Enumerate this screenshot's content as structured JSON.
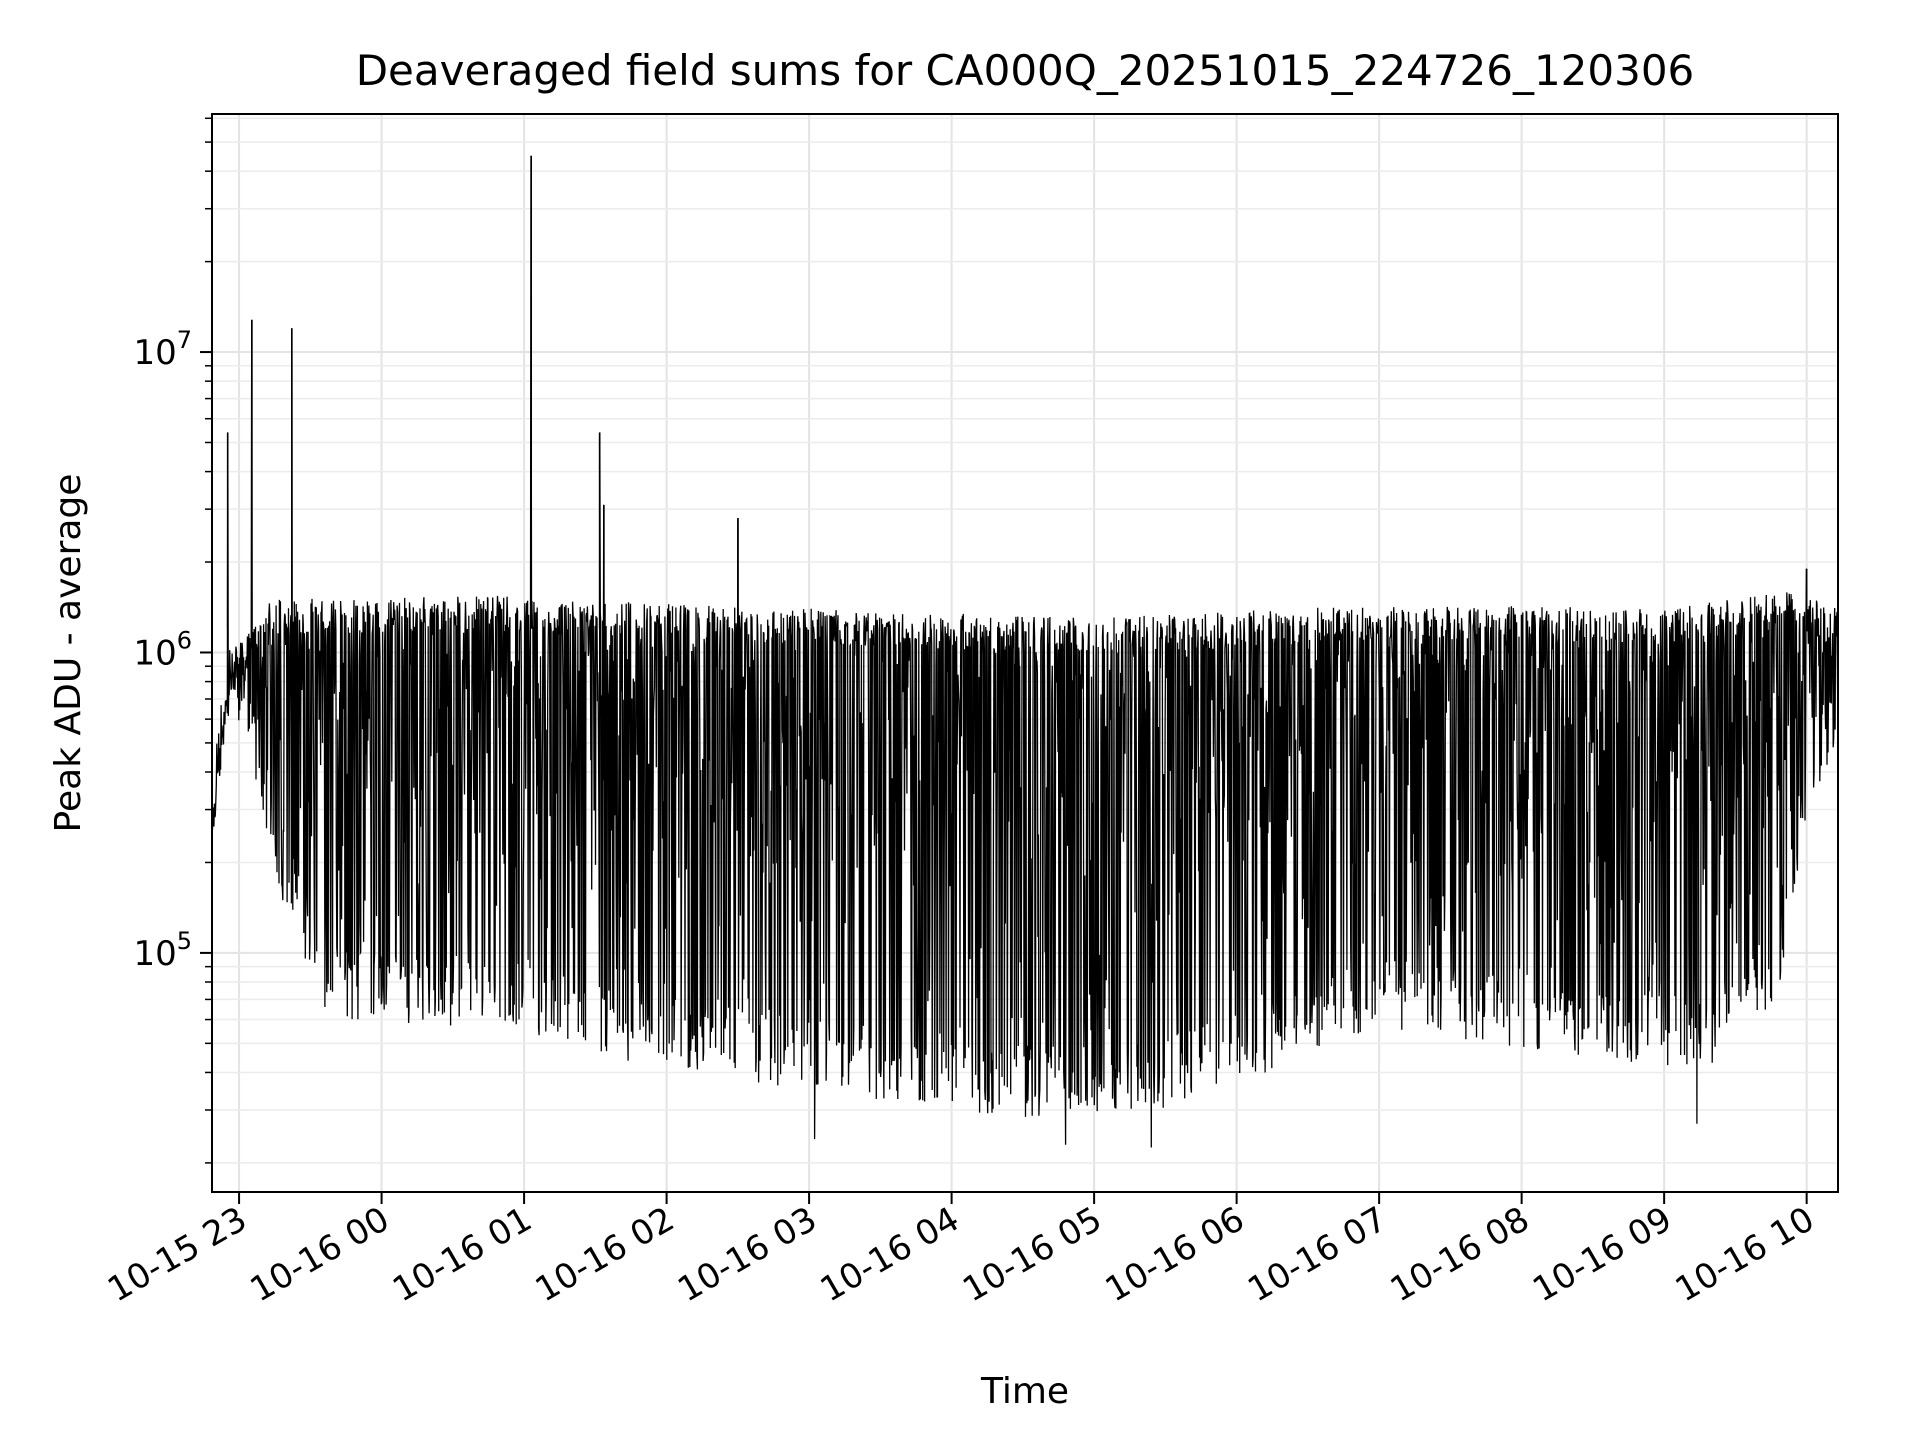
{
  "chart_data": {
    "type": "line",
    "title": "Deaveraged field sums for CA000Q_20251015_224726_120306",
    "xlabel": "Time",
    "ylabel": "Peak ADU - average",
    "yscale": "log",
    "ylim": [
      16000,
      62000000
    ],
    "xlim_hours": [
      -0.19,
      11.22
    ],
    "grid": true,
    "line_color": "#000000",
    "x_ticks": [
      {
        "hour": 0,
        "label": "10-15 23"
      },
      {
        "hour": 1,
        "label": "10-16 00"
      },
      {
        "hour": 2,
        "label": "10-16 01"
      },
      {
        "hour": 3,
        "label": "10-16 02"
      },
      {
        "hour": 4,
        "label": "10-16 03"
      },
      {
        "hour": 5,
        "label": "10-16 04"
      },
      {
        "hour": 6,
        "label": "10-16 05"
      },
      {
        "hour": 7,
        "label": "10-16 06"
      },
      {
        "hour": 8,
        "label": "10-16 07"
      },
      {
        "hour": 9,
        "label": "10-16 08"
      },
      {
        "hour": 10,
        "label": "10-16 09"
      },
      {
        "hour": 11,
        "label": "10-16 10"
      }
    ],
    "y_ticks": [
      {
        "value": 100000,
        "base": "10",
        "exp": "5"
      },
      {
        "value": 1000000,
        "base": "10",
        "exp": "6"
      },
      {
        "value": 10000000,
        "base": "10",
        "exp": "7"
      }
    ],
    "upper_envelope": [
      [
        -0.19,
        300000
      ],
      [
        -0.05,
        1000000
      ],
      [
        0.2,
        1500000
      ],
      [
        2.0,
        1550000
      ],
      [
        3.0,
        1450000
      ],
      [
        5.0,
        1350000
      ],
      [
        6.0,
        1300000
      ],
      [
        8.0,
        1450000
      ],
      [
        10.0,
        1400000
      ],
      [
        10.9,
        1600000
      ],
      [
        11.22,
        1400000
      ]
    ],
    "lower_envelope": [
      [
        -0.19,
        250000
      ],
      [
        -0.05,
        700000
      ],
      [
        0.1,
        400000
      ],
      [
        0.3,
        150000
      ],
      [
        0.6,
        60000
      ],
      [
        2.0,
        55000
      ],
      [
        3.0,
        40000
      ],
      [
        4.0,
        35000
      ],
      [
        5.5,
        28000
      ],
      [
        6.5,
        30000
      ],
      [
        8.0,
        55000
      ],
      [
        9.5,
        45000
      ],
      [
        10.3,
        40000
      ],
      [
        10.8,
        70000
      ],
      [
        11.0,
        300000
      ],
      [
        11.22,
        500000
      ]
    ],
    "spikes": [
      {
        "hour": -0.08,
        "value": 5400000
      },
      {
        "hour": 0.09,
        "value": 12800000
      },
      {
        "hour": 0.37,
        "value": 12000000
      },
      {
        "hour": 2.05,
        "value": 45000000
      },
      {
        "hour": 2.53,
        "value": 5400000
      },
      {
        "hour": 2.56,
        "value": 3100000
      },
      {
        "hour": 3.5,
        "value": 2800000
      },
      {
        "hour": 11.0,
        "value": 1900000
      }
    ],
    "dips": [
      {
        "hour": 4.04,
        "value": 24000
      },
      {
        "hour": 5.8,
        "value": 23000
      },
      {
        "hour": 6.4,
        "value": 22500
      },
      {
        "hour": 10.23,
        "value": 27000
      }
    ]
  }
}
